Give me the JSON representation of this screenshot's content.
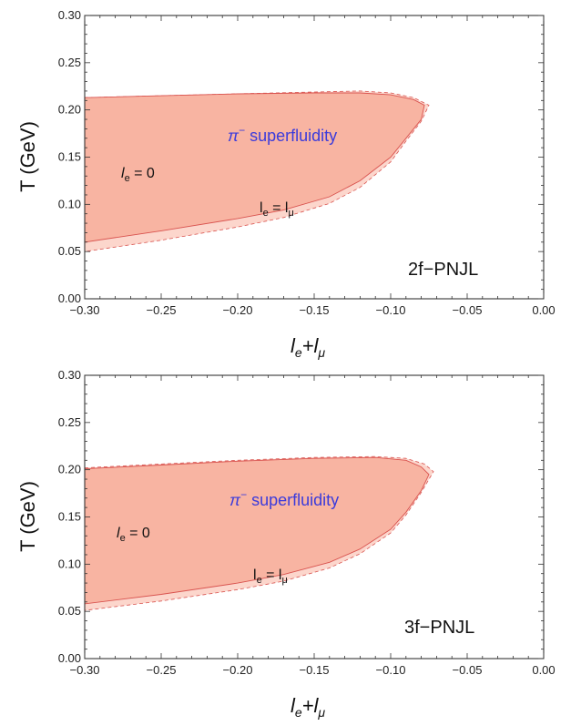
{
  "chart_data": [
    {
      "type": "area",
      "xlim": [
        -0.3,
        0.0
      ],
      "ylim": [
        0.0,
        0.3
      ],
      "x_ticks": [
        "−0.30",
        "−0.25",
        "−0.20",
        "−0.15",
        "−0.10",
        "−0.05",
        "0.00"
      ],
      "y_ticks": [
        "0.00",
        "0.05",
        "0.10",
        "0.15",
        "0.20",
        "0.25",
        "0.30"
      ],
      "x_tick_values": [
        -0.3,
        -0.25,
        -0.2,
        -0.15,
        -0.1,
        -0.05,
        0.0
      ],
      "y_tick_values": [
        0.0,
        0.05,
        0.1,
        0.15,
        0.2,
        0.25,
        0.3
      ],
      "xlabel_main": "l",
      "xlabel_sub1": "e",
      "xlabel_mid": "+l",
      "xlabel_sub2": "μ",
      "ylabel": "T (GeV)",
      "model_label": "2f−PNJL",
      "phase_label_symbol": "π",
      "phase_label_sup": "−",
      "phase_label_text": " superfluidity",
      "annot_inner_main": "l",
      "annot_inner_sub": "e",
      "annot_inner_rest": " = 0",
      "annot_outer_main": "l",
      "annot_outer_sub": "e",
      "annot_outer_mid": " = l",
      "annot_outer_sub2": "μ",
      "colors": {
        "inner": "#f8b4a2",
        "outer": "#fcd6cc",
        "edge": "#d9534f"
      },
      "series": [
        {
          "upper": [
            [
              -0.3,
              0.213
            ],
            [
              -0.25,
              0.215
            ],
            [
              -0.2,
              0.217
            ],
            [
              -0.15,
              0.218
            ],
            [
              -0.12,
              0.218
            ],
            [
              -0.1,
              0.216
            ],
            [
              -0.085,
              0.211
            ],
            [
              -0.078,
              0.205
            ]
          ],
          "lower": [
            [
              -0.3,
              0.06
            ],
            [
              -0.25,
              0.072
            ],
            [
              -0.2,
              0.085
            ],
            [
              -0.17,
              0.094
            ],
            [
              -0.14,
              0.108
            ],
            [
              -0.12,
              0.125
            ],
            [
              -0.1,
              0.15
            ],
            [
              -0.09,
              0.17
            ],
            [
              -0.08,
              0.19
            ],
            [
              -0.078,
              0.205
            ]
          ]
        },
        {
          "upper": [
            [
              -0.3,
              0.213
            ],
            [
              -0.25,
              0.215
            ],
            [
              -0.2,
              0.217
            ],
            [
              -0.15,
              0.219
            ],
            [
              -0.12,
              0.22
            ],
            [
              -0.1,
              0.218
            ],
            [
              -0.085,
              0.213
            ],
            [
              -0.075,
              0.205
            ]
          ],
          "lower": [
            [
              -0.3,
              0.05
            ],
            [
              -0.25,
              0.062
            ],
            [
              -0.2,
              0.076
            ],
            [
              -0.17,
              0.086
            ],
            [
              -0.14,
              0.101
            ],
            [
              -0.12,
              0.118
            ],
            [
              -0.1,
              0.145
            ],
            [
              -0.09,
              0.167
            ],
            [
              -0.08,
              0.188
            ],
            [
              -0.075,
              0.205
            ]
          ]
        }
      ]
    },
    {
      "type": "area",
      "xlim": [
        -0.3,
        0.0
      ],
      "ylim": [
        0.0,
        0.3
      ],
      "x_ticks": [
        "−0.30",
        "−0.25",
        "−0.20",
        "−0.15",
        "−0.10",
        "−0.05",
        "0.00"
      ],
      "y_ticks": [
        "0.00",
        "0.05",
        "0.10",
        "0.15",
        "0.20",
        "0.25",
        "0.30"
      ],
      "x_tick_values": [
        -0.3,
        -0.25,
        -0.2,
        -0.15,
        -0.1,
        -0.05,
        0.0
      ],
      "y_tick_values": [
        0.0,
        0.05,
        0.1,
        0.15,
        0.2,
        0.25,
        0.3
      ],
      "xlabel_main": "l",
      "xlabel_sub1": "e",
      "xlabel_mid": "+l",
      "xlabel_sub2": "μ",
      "ylabel": "T (GeV)",
      "model_label": "3f−PNJL",
      "phase_label_symbol": "π",
      "phase_label_sup": "−",
      "phase_label_text": " superfluidity",
      "annot_inner_main": "l",
      "annot_inner_sub": "e",
      "annot_inner_rest": " = 0",
      "annot_outer_main": "l",
      "annot_outer_sub": "e",
      "annot_outer_mid": " = l",
      "annot_outer_sub2": "μ",
      "colors": {
        "inner": "#f8b4a2",
        "outer": "#fcd6cc",
        "edge": "#d9534f"
      },
      "series": [
        {
          "upper": [
            [
              -0.3,
              0.201
            ],
            [
              -0.25,
              0.205
            ],
            [
              -0.2,
              0.209
            ],
            [
              -0.15,
              0.212
            ],
            [
              -0.11,
              0.213
            ],
            [
              -0.09,
              0.21
            ],
            [
              -0.08,
              0.203
            ],
            [
              -0.075,
              0.195
            ]
          ],
          "lower": [
            [
              -0.3,
              0.058
            ],
            [
              -0.25,
              0.068
            ],
            [
              -0.2,
              0.08
            ],
            [
              -0.17,
              0.089
            ],
            [
              -0.14,
              0.102
            ],
            [
              -0.12,
              0.116
            ],
            [
              -0.1,
              0.137
            ],
            [
              -0.09,
              0.155
            ],
            [
              -0.08,
              0.178
            ],
            [
              -0.075,
              0.195
            ]
          ]
        },
        {
          "upper": [
            [
              -0.3,
              0.202
            ],
            [
              -0.25,
              0.206
            ],
            [
              -0.2,
              0.21
            ],
            [
              -0.15,
              0.213
            ],
            [
              -0.11,
              0.214
            ],
            [
              -0.09,
              0.212
            ],
            [
              -0.078,
              0.206
            ],
            [
              -0.072,
              0.198
            ]
          ],
          "lower": [
            [
              -0.3,
              0.051
            ],
            [
              -0.25,
              0.061
            ],
            [
              -0.2,
              0.073
            ],
            [
              -0.17,
              0.082
            ],
            [
              -0.14,
              0.096
            ],
            [
              -0.12,
              0.111
            ],
            [
              -0.1,
              0.133
            ],
            [
              -0.09,
              0.152
            ],
            [
              -0.08,
              0.176
            ],
            [
              -0.072,
              0.198
            ]
          ]
        }
      ]
    }
  ]
}
